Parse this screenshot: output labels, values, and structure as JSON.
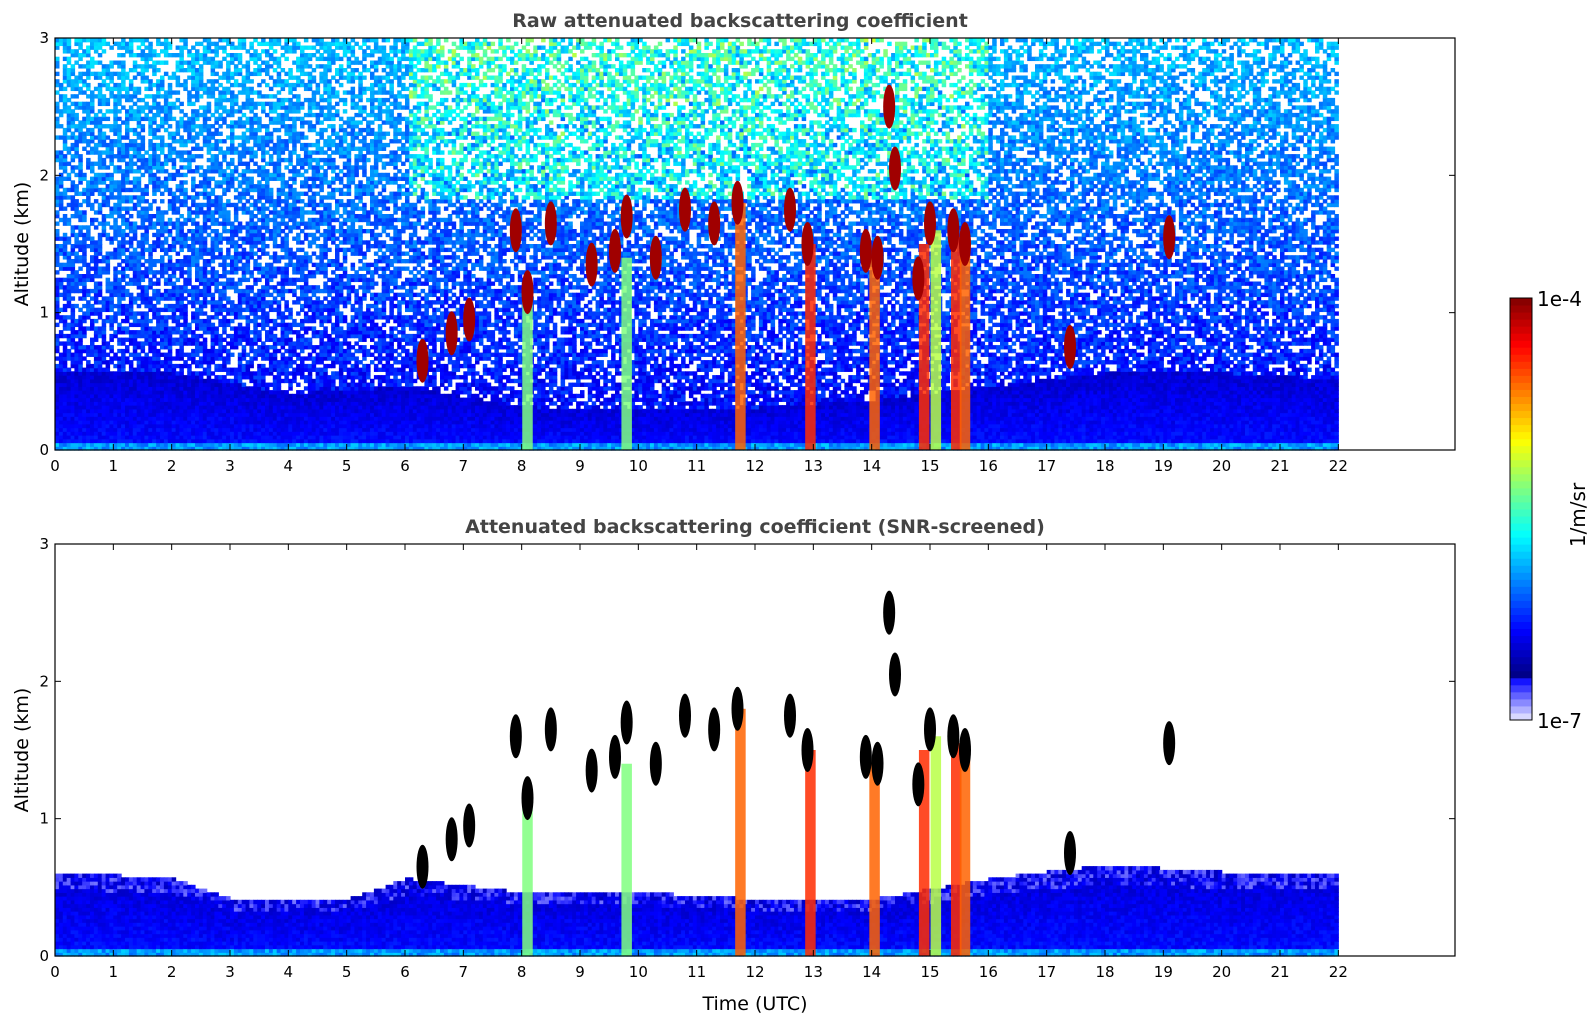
{
  "chart_data": [
    {
      "type": "heatmap",
      "title": "Raw attenuated backscattering coefficient",
      "xlabel": "",
      "ylabel": "Altitude (km)",
      "xlim": [
        0,
        24
      ],
      "ylim": [
        0,
        3
      ],
      "x_ticks": [
        "0",
        "1",
        "2",
        "3",
        "4",
        "5",
        "6",
        "7",
        "8",
        "9",
        "10",
        "11",
        "12",
        "13",
        "14",
        "15",
        "16",
        "17",
        "18",
        "19",
        "20",
        "21",
        "22"
      ],
      "y_ticks": [
        "0",
        "1",
        "2",
        "3"
      ],
      "data_time_range": [
        0,
        22
      ],
      "colorscale": "jet",
      "color_scale_type": "log",
      "noise_background": "scattered speckle increasing with altitude",
      "boundary_layer": [
        {
          "t": 0,
          "top": 0.55
        },
        {
          "t": 2,
          "top": 0.55
        },
        {
          "t": 4,
          "top": 0.4
        },
        {
          "t": 6,
          "top": 0.45
        },
        {
          "t": 8,
          "top": 0.3
        },
        {
          "t": 12,
          "top": 0.3
        },
        {
          "t": 14,
          "top": 0.35
        },
        {
          "t": 16,
          "top": 0.45
        },
        {
          "t": 18,
          "top": 0.55
        },
        {
          "t": 20,
          "top": 0.55
        },
        {
          "t": 22,
          "top": 0.5
        }
      ],
      "cloud_features": [
        {
          "t": 6.3,
          "alt": 0.65
        },
        {
          "t": 6.8,
          "alt": 0.85
        },
        {
          "t": 7.1,
          "alt": 0.95
        },
        {
          "t": 7.9,
          "alt": 1.6
        },
        {
          "t": 8.1,
          "alt": 1.15
        },
        {
          "t": 8.5,
          "alt": 1.65
        },
        {
          "t": 9.2,
          "alt": 1.35
        },
        {
          "t": 9.6,
          "alt": 1.45
        },
        {
          "t": 9.8,
          "alt": 1.7
        },
        {
          "t": 10.3,
          "alt": 1.4
        },
        {
          "t": 10.8,
          "alt": 1.75
        },
        {
          "t": 11.3,
          "alt": 1.65
        },
        {
          "t": 11.7,
          "alt": 1.8
        },
        {
          "t": 12.6,
          "alt": 1.75
        },
        {
          "t": 12.9,
          "alt": 1.5
        },
        {
          "t": 13.9,
          "alt": 1.45
        },
        {
          "t": 14.1,
          "alt": 1.4
        },
        {
          "t": 14.3,
          "alt": 2.5
        },
        {
          "t": 14.4,
          "alt": 2.05
        },
        {
          "t": 14.8,
          "alt": 1.25
        },
        {
          "t": 15.0,
          "alt": 1.65
        },
        {
          "t": 15.4,
          "alt": 1.6
        },
        {
          "t": 15.6,
          "alt": 1.5
        },
        {
          "t": 17.4,
          "alt": 0.75
        },
        {
          "t": 19.1,
          "alt": 1.55
        }
      ],
      "precip_columns": [
        {
          "t": 8.1,
          "top": 1.1,
          "level": 0.55
        },
        {
          "t": 9.8,
          "top": 1.4,
          "level": 0.55
        },
        {
          "t": 11.75,
          "top": 1.8,
          "level": 0.8
        },
        {
          "t": 12.95,
          "top": 1.5,
          "level": 0.85
        },
        {
          "t": 14.05,
          "top": 1.4,
          "level": 0.8
        },
        {
          "t": 14.9,
          "top": 1.5,
          "level": 0.85
        },
        {
          "t": 15.1,
          "top": 1.6,
          "level": 0.6
        },
        {
          "t": 15.45,
          "top": 1.55,
          "level": 0.85
        },
        {
          "t": 15.6,
          "top": 1.5,
          "level": 0.8
        }
      ]
    },
    {
      "type": "heatmap",
      "title": "Attenuated backscattering coefficient (SNR-screened)",
      "xlabel": "Time (UTC)",
      "ylabel": "Altitude (km)",
      "xlim": [
        0,
        24
      ],
      "ylim": [
        0,
        3
      ],
      "x_ticks": [
        "0",
        "1",
        "2",
        "3",
        "4",
        "5",
        "6",
        "7",
        "8",
        "9",
        "10",
        "11",
        "12",
        "13",
        "14",
        "15",
        "16",
        "17",
        "18",
        "19",
        "20",
        "21",
        "22"
      ],
      "y_ticks": [
        "0",
        "1",
        "2",
        "3"
      ],
      "data_time_range": [
        0,
        22
      ],
      "colorscale": "jet",
      "color_scale_type": "log",
      "screened": true,
      "boundary_layer": [
        {
          "t": 0,
          "top": 0.6
        },
        {
          "t": 2,
          "top": 0.55
        },
        {
          "t": 3,
          "top": 0.4
        },
        {
          "t": 5,
          "top": 0.4
        },
        {
          "t": 6,
          "top": 0.55
        },
        {
          "t": 8,
          "top": 0.45
        },
        {
          "t": 10,
          "top": 0.45
        },
        {
          "t": 12,
          "top": 0.4
        },
        {
          "t": 14,
          "top": 0.4
        },
        {
          "t": 16,
          "top": 0.55
        },
        {
          "t": 18,
          "top": 0.65
        },
        {
          "t": 20,
          "top": 0.6
        },
        {
          "t": 22,
          "top": 0.6
        }
      ],
      "cloud_features": [
        {
          "t": 6.3,
          "alt": 0.65
        },
        {
          "t": 6.8,
          "alt": 0.85
        },
        {
          "t": 7.1,
          "alt": 0.95
        },
        {
          "t": 7.9,
          "alt": 1.6
        },
        {
          "t": 8.1,
          "alt": 1.15
        },
        {
          "t": 8.5,
          "alt": 1.65
        },
        {
          "t": 9.2,
          "alt": 1.35
        },
        {
          "t": 9.6,
          "alt": 1.45
        },
        {
          "t": 9.8,
          "alt": 1.7
        },
        {
          "t": 10.3,
          "alt": 1.4
        },
        {
          "t": 10.8,
          "alt": 1.75
        },
        {
          "t": 11.3,
          "alt": 1.65
        },
        {
          "t": 11.7,
          "alt": 1.8
        },
        {
          "t": 12.6,
          "alt": 1.75
        },
        {
          "t": 12.9,
          "alt": 1.5
        },
        {
          "t": 13.9,
          "alt": 1.45
        },
        {
          "t": 14.1,
          "alt": 1.4
        },
        {
          "t": 14.3,
          "alt": 2.5
        },
        {
          "t": 14.4,
          "alt": 2.05
        },
        {
          "t": 14.8,
          "alt": 1.25
        },
        {
          "t": 15.0,
          "alt": 1.65
        },
        {
          "t": 15.4,
          "alt": 1.6
        },
        {
          "t": 15.6,
          "alt": 1.5
        },
        {
          "t": 17.4,
          "alt": 0.75
        },
        {
          "t": 19.1,
          "alt": 1.55
        }
      ],
      "precip_columns": [
        {
          "t": 8.1,
          "top": 1.1,
          "level": 0.55
        },
        {
          "t": 9.8,
          "top": 1.4,
          "level": 0.55
        },
        {
          "t": 11.75,
          "top": 1.8,
          "level": 0.8
        },
        {
          "t": 12.95,
          "top": 1.5,
          "level": 0.85
        },
        {
          "t": 14.05,
          "top": 1.4,
          "level": 0.8
        },
        {
          "t": 14.9,
          "top": 1.5,
          "level": 0.85
        },
        {
          "t": 15.1,
          "top": 1.6,
          "level": 0.6
        },
        {
          "t": 15.45,
          "top": 1.55,
          "level": 0.85
        },
        {
          "t": 15.6,
          "top": 1.5,
          "level": 0.8
        }
      ]
    }
  ],
  "colorbar": {
    "label": "1/m/sr",
    "max_label": "1e-4",
    "min_label": "1e-7",
    "colormap": "jet"
  }
}
